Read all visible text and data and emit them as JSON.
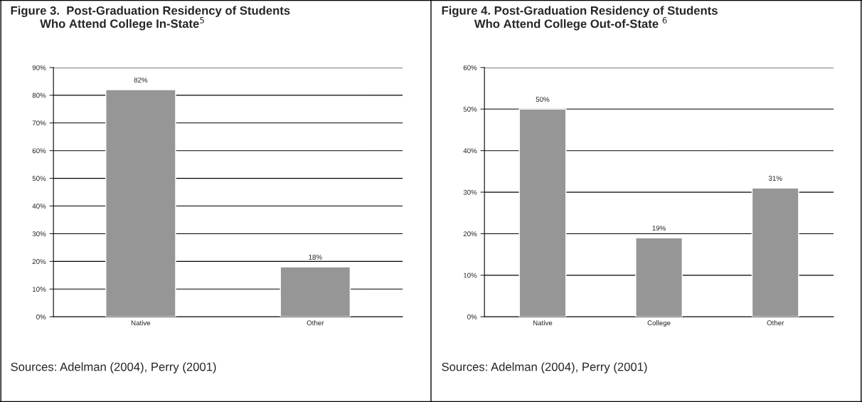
{
  "chart_data": [
    {
      "type": "bar",
      "title": "Figure 3.  Post-Graduation Residency of Students\n         Who Attend College In-State$^{5}$",
      "categories": [
        "Native",
        "Other"
      ],
      "values": [
        82,
        18
      ],
      "color": "#969696",
      "ylim": [
        0,
        90
      ],
      "yticks": [
        {
          "value": 0,
          "label": "0%"
        },
        {
          "value": 10,
          "label": "10%"
        },
        {
          "value": 20,
          "label": "20%"
        },
        {
          "value": 30,
          "label": "30%"
        },
        {
          "value": 40,
          "label": "40%"
        },
        {
          "value": 50,
          "label": "50%"
        },
        {
          "value": 60,
          "label": "60%"
        },
        {
          "value": 70,
          "label": "70%"
        },
        {
          "value": 80,
          "label": "80%"
        },
        {
          "value": 90,
          "label": "90%"
        }
      ],
      "value_labels": [
        "82%",
        "18%"
      ],
      "grid": "y",
      "annotations": [
        "Sources: Adelman (2004), Perry (2001)"
      ]
    },
    {
      "type": "bar",
      "title": "Figure 4. Post-Graduation Residency of Students\n          Who Attend College Out-of-State $^{6}$",
      "categories": [
        "Native",
        "College",
        "Other"
      ],
      "values": [
        50,
        19,
        31
      ],
      "color": "#969696",
      "ylim": [
        0,
        60
      ],
      "yticks": [
        {
          "value": 0,
          "label": "0%"
        },
        {
          "value": 10,
          "label": "10%"
        },
        {
          "value": 20,
          "label": "20%"
        },
        {
          "value": 30,
          "label": "30%"
        },
        {
          "value": 40,
          "label": "40%"
        },
        {
          "value": 50,
          "label": "50%"
        },
        {
          "value": 60,
          "label": "60%"
        }
      ],
      "value_labels": [
        "50%",
        "19%",
        "31%"
      ],
      "grid": "y",
      "annotations": [
        "Sources: Adelman (2004), Perry (2001)"
      ]
    }
  ]
}
